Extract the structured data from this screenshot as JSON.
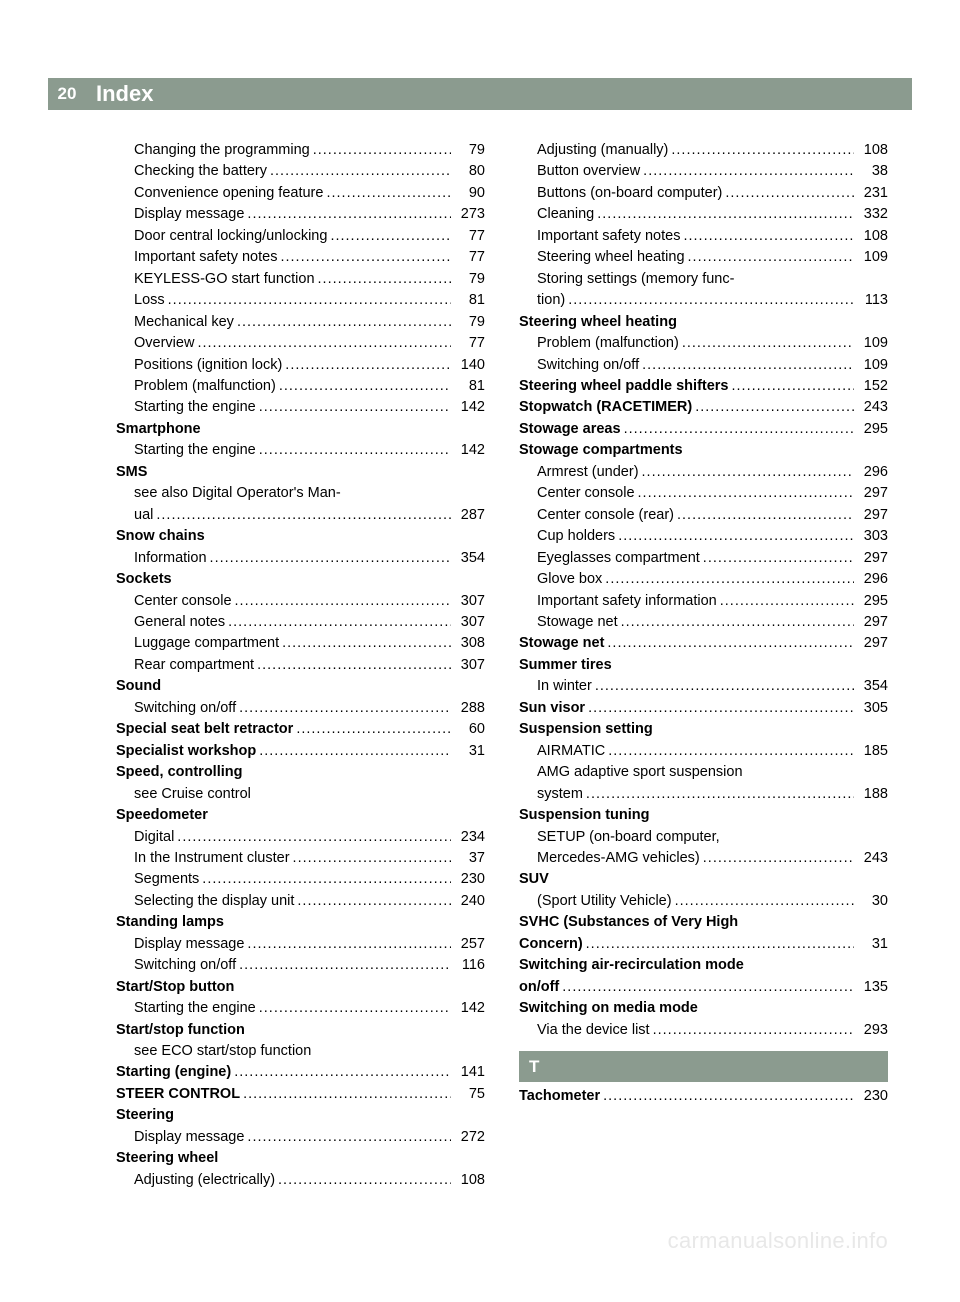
{
  "page_number": "20",
  "header_title": "Index",
  "section_letter": "T",
  "leader_chars": "......................................................................",
  "watermark": "carmanualsonline.info",
  "colors": {
    "bar": "#8b9b8f",
    "bar_text": "#ffffff",
    "text": "#000000",
    "watermark": "#e8e8e8",
    "bg": "#ffffff"
  },
  "entries": [
    {
      "type": "sub",
      "label": "Changing the programming",
      "page": "79"
    },
    {
      "type": "sub",
      "label": "Checking the battery",
      "page": "80"
    },
    {
      "type": "sub",
      "label": "Convenience opening feature",
      "page": "90"
    },
    {
      "type": "sub",
      "label": "Display message",
      "page": "273"
    },
    {
      "type": "sub",
      "label": "Door central locking/unlocking",
      "page": "77"
    },
    {
      "type": "sub",
      "label": "Important safety notes",
      "page": "77"
    },
    {
      "type": "sub",
      "label": "KEYLESS-GO start function",
      "page": "79"
    },
    {
      "type": "sub",
      "label": "Loss",
      "page": "81"
    },
    {
      "type": "sub",
      "label": "Mechanical key",
      "page": "79"
    },
    {
      "type": "sub",
      "label": "Overview",
      "page": "77"
    },
    {
      "type": "sub",
      "label": "Positions (ignition lock)",
      "page": "140"
    },
    {
      "type": "sub",
      "label": "Problem (malfunction)",
      "page": "81"
    },
    {
      "type": "sub",
      "label": "Starting the engine",
      "page": "142"
    },
    {
      "type": "heading",
      "label": "Smartphone"
    },
    {
      "type": "sub",
      "label": "Starting the engine",
      "page": "142"
    },
    {
      "type": "heading",
      "label": "SMS"
    },
    {
      "type": "sub-wrap",
      "label_line1": "see also Digital Operator's Man-",
      "label_line2": "ual",
      "page": "287"
    },
    {
      "type": "heading",
      "label": "Snow chains"
    },
    {
      "type": "sub",
      "label": "Information",
      "page": "354"
    },
    {
      "type": "heading",
      "label": "Sockets"
    },
    {
      "type": "sub",
      "label": "Center console",
      "page": "307"
    },
    {
      "type": "sub",
      "label": "General notes",
      "page": "307"
    },
    {
      "type": "sub",
      "label": "Luggage compartment",
      "page": "308"
    },
    {
      "type": "sub",
      "label": "Rear compartment",
      "page": "307"
    },
    {
      "type": "heading",
      "label": "Sound"
    },
    {
      "type": "sub",
      "label": "Switching on/off",
      "page": "288"
    },
    {
      "type": "bold-entry",
      "label": "Special seat belt retractor",
      "page": "60"
    },
    {
      "type": "bold-entry",
      "label": "Specialist workshop",
      "page": "31"
    },
    {
      "type": "heading",
      "label": "Speed, controlling"
    },
    {
      "type": "sub-noleader",
      "label": "see Cruise control"
    },
    {
      "type": "heading",
      "label": "Speedometer"
    },
    {
      "type": "sub",
      "label": "Digital",
      "page": "234"
    },
    {
      "type": "sub",
      "label": "In the Instrument cluster",
      "page": "37"
    },
    {
      "type": "sub",
      "label": "Segments",
      "page": "230"
    },
    {
      "type": "sub",
      "label": "Selecting the display unit",
      "page": "240"
    },
    {
      "type": "heading",
      "label": "Standing lamps"
    },
    {
      "type": "sub",
      "label": "Display message",
      "page": "257"
    },
    {
      "type": "sub",
      "label": "Switching on/off",
      "page": "116"
    },
    {
      "type": "heading",
      "label": "Start/Stop button"
    },
    {
      "type": "sub",
      "label": "Starting the engine",
      "page": "142"
    },
    {
      "type": "heading",
      "label": "Start/stop function"
    },
    {
      "type": "sub-noleader",
      "label": "see ECO start/stop function"
    },
    {
      "type": "bold-entry",
      "label": "Starting (engine)",
      "page": "141"
    },
    {
      "type": "bold-entry",
      "label": "STEER CONTROL",
      "page": "75"
    },
    {
      "type": "heading",
      "label": "Steering"
    },
    {
      "type": "sub",
      "label": "Display message",
      "page": "272"
    },
    {
      "type": "heading",
      "label": "Steering wheel"
    },
    {
      "type": "sub",
      "label": "Adjusting (electrically)",
      "page": "108"
    },
    {
      "type": "sub",
      "label": "Adjusting (manually)",
      "page": "108"
    },
    {
      "type": "sub",
      "label": "Button overview",
      "page": "38"
    },
    {
      "type": "sub",
      "label": "Buttons (on-board computer)",
      "page": "231"
    },
    {
      "type": "sub",
      "label": "Cleaning",
      "page": "332"
    },
    {
      "type": "sub",
      "label": "Important safety notes",
      "page": "108"
    },
    {
      "type": "sub",
      "label": "Steering wheel heating",
      "page": "109"
    },
    {
      "type": "sub-wrap",
      "label_line1": "Storing settings (memory func-",
      "label_line2": "tion)",
      "page": "113"
    },
    {
      "type": "heading",
      "label": "Steering wheel heating"
    },
    {
      "type": "sub",
      "label": "Problem (malfunction)",
      "page": "109"
    },
    {
      "type": "sub",
      "label": "Switching on/off",
      "page": "109"
    },
    {
      "type": "bold-entry",
      "label": "Steering wheel paddle shifters",
      "page": "152"
    },
    {
      "type": "bold-entry",
      "label": "Stopwatch (RACETIMER)",
      "page": "243"
    },
    {
      "type": "bold-entry",
      "label": "Stowage areas",
      "page": "295"
    },
    {
      "type": "heading",
      "label": "Stowage compartments"
    },
    {
      "type": "sub",
      "label": "Armrest (under)",
      "page": "296"
    },
    {
      "type": "sub",
      "label": "Center console",
      "page": "297"
    },
    {
      "type": "sub",
      "label": "Center console (rear)",
      "page": "297"
    },
    {
      "type": "sub",
      "label": "Cup holders",
      "page": "303"
    },
    {
      "type": "sub",
      "label": "Eyeglasses compartment",
      "page": "297"
    },
    {
      "type": "sub",
      "label": "Glove box",
      "page": "296"
    },
    {
      "type": "sub",
      "label": "Important safety information",
      "page": "295"
    },
    {
      "type": "sub",
      "label": "Stowage net",
      "page": "297"
    },
    {
      "type": "bold-entry",
      "label": "Stowage net",
      "page": "297"
    },
    {
      "type": "heading",
      "label": "Summer tires"
    },
    {
      "type": "sub",
      "label": "In winter",
      "page": "354"
    },
    {
      "type": "bold-entry",
      "label": "Sun visor",
      "page": "305"
    },
    {
      "type": "heading",
      "label": "Suspension setting"
    },
    {
      "type": "sub",
      "label": "AIRMATIC",
      "page": "185"
    },
    {
      "type": "sub-wrap",
      "label_line1": "AMG adaptive sport suspension",
      "label_line2": "system",
      "page": "188"
    },
    {
      "type": "heading",
      "label": "Suspension tuning"
    },
    {
      "type": "sub-wrap",
      "label_line1": "SETUP (on-board computer,",
      "label_line2": "Mercedes-AMG vehicles)",
      "page": "243"
    },
    {
      "type": "heading",
      "label": "SUV"
    },
    {
      "type": "sub",
      "label": "(Sport Utility Vehicle)",
      "page": "30"
    },
    {
      "type": "bold-wrap",
      "label_line1": "SVHC (Substances of Very High",
      "label_line2": "Concern)",
      "page": "31"
    },
    {
      "type": "bold-wrap",
      "label_line1": "Switching air-recirculation mode",
      "label_line2": "on/off",
      "page": "135"
    },
    {
      "type": "heading",
      "label": "Switching on media mode"
    },
    {
      "type": "sub",
      "label": "Via the device list",
      "page": "293"
    },
    {
      "type": "section-letter"
    },
    {
      "type": "bold-entry",
      "label": "Tachometer",
      "page": "230"
    }
  ]
}
